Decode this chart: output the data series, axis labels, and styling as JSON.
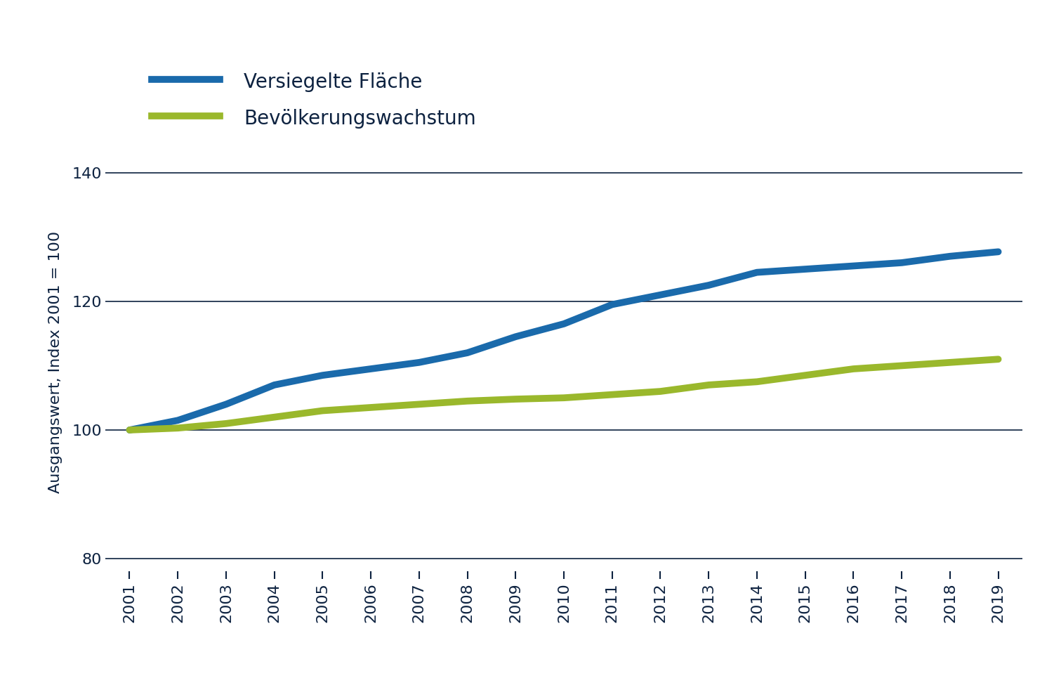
{
  "years": [
    2001,
    2002,
    2003,
    2004,
    2005,
    2006,
    2007,
    2008,
    2009,
    2010,
    2011,
    2012,
    2013,
    2014,
    2015,
    2016,
    2017,
    2018,
    2019
  ],
  "versiegelte_flaeche": [
    100,
    101.5,
    104,
    107,
    108.5,
    109.5,
    110.5,
    112,
    114.5,
    116.5,
    119.5,
    121,
    122.5,
    124.5,
    125,
    125.5,
    126,
    127,
    127.7
  ],
  "bevoelkerungswachstum": [
    100,
    100.3,
    101,
    102,
    103,
    103.5,
    104,
    104.5,
    104.8,
    105,
    105.5,
    106,
    107,
    107.5,
    108.5,
    109.5,
    110,
    110.5,
    111
  ],
  "line_color_versiegelt": "#1a6aab",
  "line_color_bevoelkerung": "#9ab82c",
  "text_color": "#0d2240",
  "background_color": "#ffffff",
  "ylabel": "Ausgangswert, Index 2001 = 100",
  "legend_label_1": "Versiegelte Fläche",
  "legend_label_2": "Bevölkerungswachstum",
  "ylim": [
    78,
    143
  ],
  "yticks": [
    80,
    100,
    120,
    140
  ],
  "line_width": 7,
  "legend_fontsize": 20,
  "ylabel_fontsize": 16,
  "tick_fontsize": 16,
  "grid_color": "#0d2240",
  "grid_linewidth": 1.2
}
